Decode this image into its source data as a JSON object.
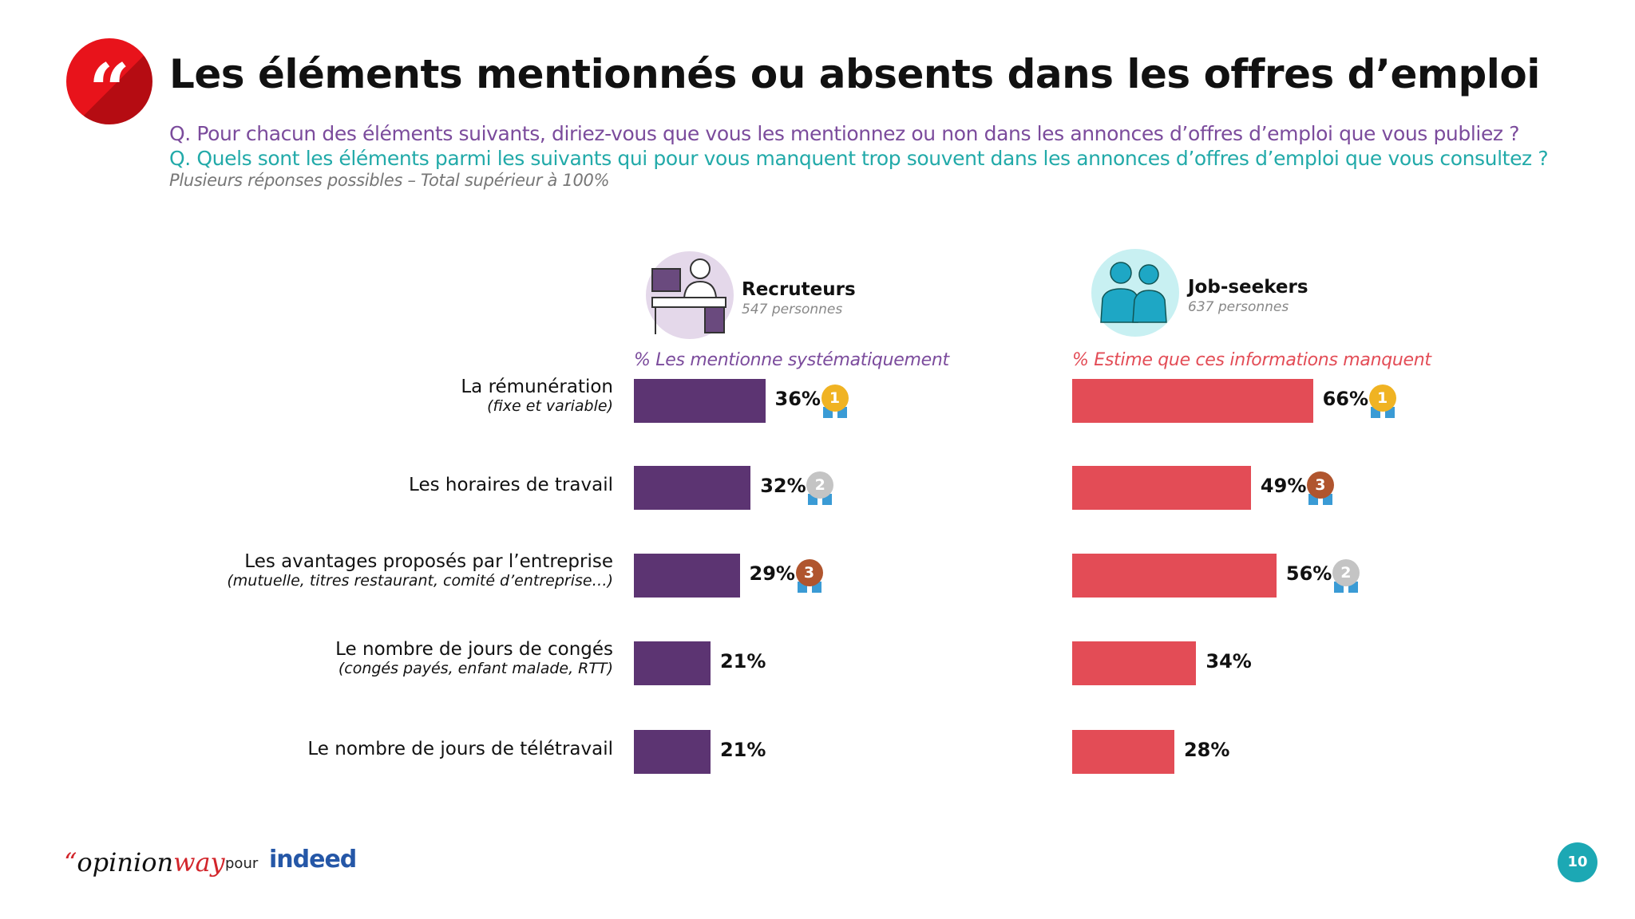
{
  "header": {
    "title": "Les éléments mentionnés ou absents dans les offres d’emploi",
    "question_recruiters": "Q. Pour chacun des éléments suivants, diriez-vous que vous les mentionnez ou non dans les annonces d’offres d’emploi que vous publiez ?",
    "question_jobseekers": "Q. Quels sont les éléments parmi les suivants qui pour vous manquent trop souvent dans les annonces d’offres d’emploi que vous consultez ?",
    "note": "Plusieurs réponses possibles – Total supérieur à 100%"
  },
  "groups": {
    "recruiters": {
      "name": "Recruteurs",
      "count": "547 personnes",
      "icon": "recruiter-at-desk-icon"
    },
    "jobseekers": {
      "name": "Job-seekers",
      "count": "637 personnes",
      "icon": "two-people-icon"
    }
  },
  "colors": {
    "recruiters": "#5c3472",
    "jobseekers": "#e34c56",
    "accent_red": "#e8131b",
    "teal": "#1ca8b4",
    "gold": "#f0b323",
    "silver": "#c4c4c4",
    "bronze": "#b0552e"
  },
  "chart_data": {
    "type": "bar",
    "orientation": "horizontal",
    "categories": [
      {
        "main": "La rémunération",
        "sub": "(fixe et variable)"
      },
      {
        "main": "Les horaires de travail",
        "sub": ""
      },
      {
        "main": "Les avantages proposés par l’entreprise",
        "sub": "(mutuelle, titres restaurant, comité d’entreprise…)"
      },
      {
        "main": "Le nombre de jours de congés",
        "sub": "(congés payés, enfant malade, RTT)"
      },
      {
        "main": "Le nombre de jours de télétravail",
        "sub": ""
      }
    ],
    "series": [
      {
        "name": "% Les mentionne systématiquement",
        "values": [
          36,
          32,
          29,
          21,
          21
        ],
        "labels": [
          "36%",
          "32%",
          "29%",
          "21%",
          "21%"
        ],
        "ranks": [
          1,
          2,
          3,
          null,
          null
        ]
      },
      {
        "name": "% Estime que ces informations manquent",
        "values": [
          66,
          49,
          56,
          34,
          28
        ],
        "labels": [
          "66%",
          "49%",
          "56%",
          "34%",
          "28%"
        ],
        "ranks": [
          1,
          3,
          2,
          null,
          null
        ]
      }
    ],
    "unit": "%"
  },
  "footer": {
    "brand": "opinionway",
    "brand_quote": "“",
    "brand_a": "opinion",
    "brand_b": "way",
    "pour": "pour",
    "client": "indeed",
    "page": "10"
  }
}
